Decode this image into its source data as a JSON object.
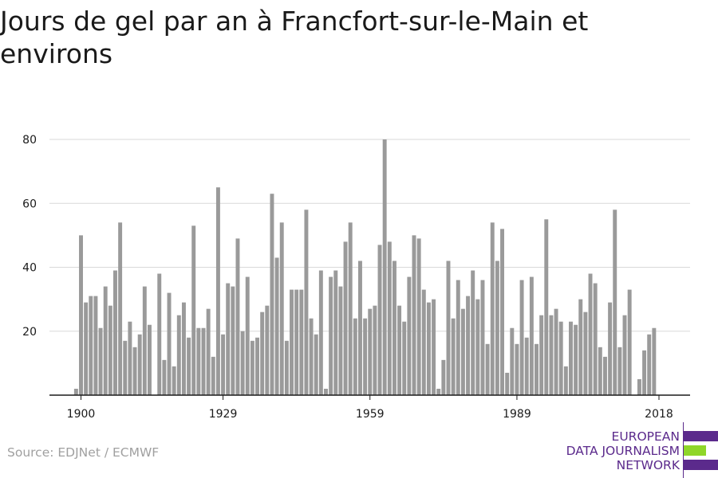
{
  "chart_data": {
    "type": "bar",
    "title": "Jours de gel par an à Francfort-sur-le-Main et environs",
    "xlabel": "",
    "ylabel": "",
    "x_range": [
      1899,
      2019
    ],
    "ylim": [
      0,
      80
    ],
    "yticks": [
      20,
      40,
      60,
      80
    ],
    "xticks": [
      1900,
      1929,
      1959,
      1989,
      2018
    ],
    "grid": true,
    "bar_color": "#9a9a9a",
    "points": [
      {
        "x": 1899,
        "y": 2
      },
      {
        "x": 1900,
        "y": 50
      },
      {
        "x": 1901,
        "y": 29
      },
      {
        "x": 1902,
        "y": 31
      },
      {
        "x": 1903,
        "y": 31
      },
      {
        "x": 1904,
        "y": 21
      },
      {
        "x": 1905,
        "y": 34
      },
      {
        "x": 1906,
        "y": 28
      },
      {
        "x": 1907,
        "y": 39
      },
      {
        "x": 1908,
        "y": 54
      },
      {
        "x": 1909,
        "y": 17
      },
      {
        "x": 1910,
        "y": 23
      },
      {
        "x": 1911,
        "y": 15
      },
      {
        "x": 1912,
        "y": 19
      },
      {
        "x": 1913,
        "y": 34
      },
      {
        "x": 1914,
        "y": 22
      },
      {
        "x": 1916,
        "y": 38
      },
      {
        "x": 1917,
        "y": 11
      },
      {
        "x": 1918,
        "y": 32
      },
      {
        "x": 1919,
        "y": 9
      },
      {
        "x": 1920,
        "y": 25
      },
      {
        "x": 1921,
        "y": 29
      },
      {
        "x": 1922,
        "y": 18
      },
      {
        "x": 1923,
        "y": 53
      },
      {
        "x": 1924,
        "y": 21
      },
      {
        "x": 1925,
        "y": 21
      },
      {
        "x": 1926,
        "y": 27
      },
      {
        "x": 1927,
        "y": 12
      },
      {
        "x": 1928,
        "y": 65
      },
      {
        "x": 1929,
        "y": 19
      },
      {
        "x": 1930,
        "y": 35
      },
      {
        "x": 1931,
        "y": 34
      },
      {
        "x": 1932,
        "y": 49
      },
      {
        "x": 1933,
        "y": 20
      },
      {
        "x": 1934,
        "y": 37
      },
      {
        "x": 1935,
        "y": 17
      },
      {
        "x": 1936,
        "y": 18
      },
      {
        "x": 1937,
        "y": 26
      },
      {
        "x": 1938,
        "y": 28
      },
      {
        "x": 1939,
        "y": 63
      },
      {
        "x": 1940,
        "y": 43
      },
      {
        "x": 1941,
        "y": 54
      },
      {
        "x": 1942,
        "y": 17
      },
      {
        "x": 1943,
        "y": 33
      },
      {
        "x": 1944,
        "y": 33
      },
      {
        "x": 1945,
        "y": 33
      },
      {
        "x": 1946,
        "y": 58
      },
      {
        "x": 1947,
        "y": 24
      },
      {
        "x": 1948,
        "y": 19
      },
      {
        "x": 1949,
        "y": 39
      },
      {
        "x": 1950,
        "y": 2
      },
      {
        "x": 1951,
        "y": 37
      },
      {
        "x": 1952,
        "y": 39
      },
      {
        "x": 1953,
        "y": 34
      },
      {
        "x": 1954,
        "y": 48
      },
      {
        "x": 1955,
        "y": 54
      },
      {
        "x": 1956,
        "y": 24
      },
      {
        "x": 1957,
        "y": 42
      },
      {
        "x": 1958,
        "y": 24
      },
      {
        "x": 1959,
        "y": 27
      },
      {
        "x": 1960,
        "y": 28
      },
      {
        "x": 1961,
        "y": 47
      },
      {
        "x": 1962,
        "y": 80
      },
      {
        "x": 1963,
        "y": 48
      },
      {
        "x": 1964,
        "y": 42
      },
      {
        "x": 1965,
        "y": 28
      },
      {
        "x": 1966,
        "y": 23
      },
      {
        "x": 1967,
        "y": 37
      },
      {
        "x": 1968,
        "y": 50
      },
      {
        "x": 1969,
        "y": 49
      },
      {
        "x": 1970,
        "y": 33
      },
      {
        "x": 1971,
        "y": 29
      },
      {
        "x": 1972,
        "y": 30
      },
      {
        "x": 1973,
        "y": 2
      },
      {
        "x": 1974,
        "y": 11
      },
      {
        "x": 1975,
        "y": 42
      },
      {
        "x": 1976,
        "y": 24
      },
      {
        "x": 1977,
        "y": 36
      },
      {
        "x": 1978,
        "y": 27
      },
      {
        "x": 1979,
        "y": 31
      },
      {
        "x": 1980,
        "y": 39
      },
      {
        "x": 1981,
        "y": 30
      },
      {
        "x": 1982,
        "y": 36
      },
      {
        "x": 1983,
        "y": 16
      },
      {
        "x": 1984,
        "y": 54
      },
      {
        "x": 1985,
        "y": 42
      },
      {
        "x": 1986,
        "y": 52
      },
      {
        "x": 1987,
        "y": 7
      },
      {
        "x": 1988,
        "y": 21
      },
      {
        "x": 1989,
        "y": 16
      },
      {
        "x": 1990,
        "y": 36
      },
      {
        "x": 1991,
        "y": 18
      },
      {
        "x": 1992,
        "y": 37
      },
      {
        "x": 1993,
        "y": 16
      },
      {
        "x": 1994,
        "y": 25
      },
      {
        "x": 1995,
        "y": 55
      },
      {
        "x": 1996,
        "y": 25
      },
      {
        "x": 1997,
        "y": 27
      },
      {
        "x": 1998,
        "y": 23
      },
      {
        "x": 1999,
        "y": 9
      },
      {
        "x": 2000,
        "y": 23
      },
      {
        "x": 2001,
        "y": 22
      },
      {
        "x": 2002,
        "y": 30
      },
      {
        "x": 2003,
        "y": 26
      },
      {
        "x": 2004,
        "y": 38
      },
      {
        "x": 2005,
        "y": 35
      },
      {
        "x": 2006,
        "y": 15
      },
      {
        "x": 2007,
        "y": 12
      },
      {
        "x": 2008,
        "y": 29
      },
      {
        "x": 2009,
        "y": 58
      },
      {
        "x": 2010,
        "y": 15
      },
      {
        "x": 2011,
        "y": 25
      },
      {
        "x": 2012,
        "y": 33
      },
      {
        "x": 2014,
        "y": 5
      },
      {
        "x": 2015,
        "y": 14
      },
      {
        "x": 2016,
        "y": 19
      },
      {
        "x": 2017,
        "y": 21
      }
    ]
  },
  "source": "Source: EDJNet / ECMWF",
  "logo": {
    "lines": [
      "EUROPEAN",
      "DATA JOURNALISM",
      "NETWORK"
    ],
    "color_primary": "#5b2a8c",
    "color_accent": "#8fd629"
  }
}
